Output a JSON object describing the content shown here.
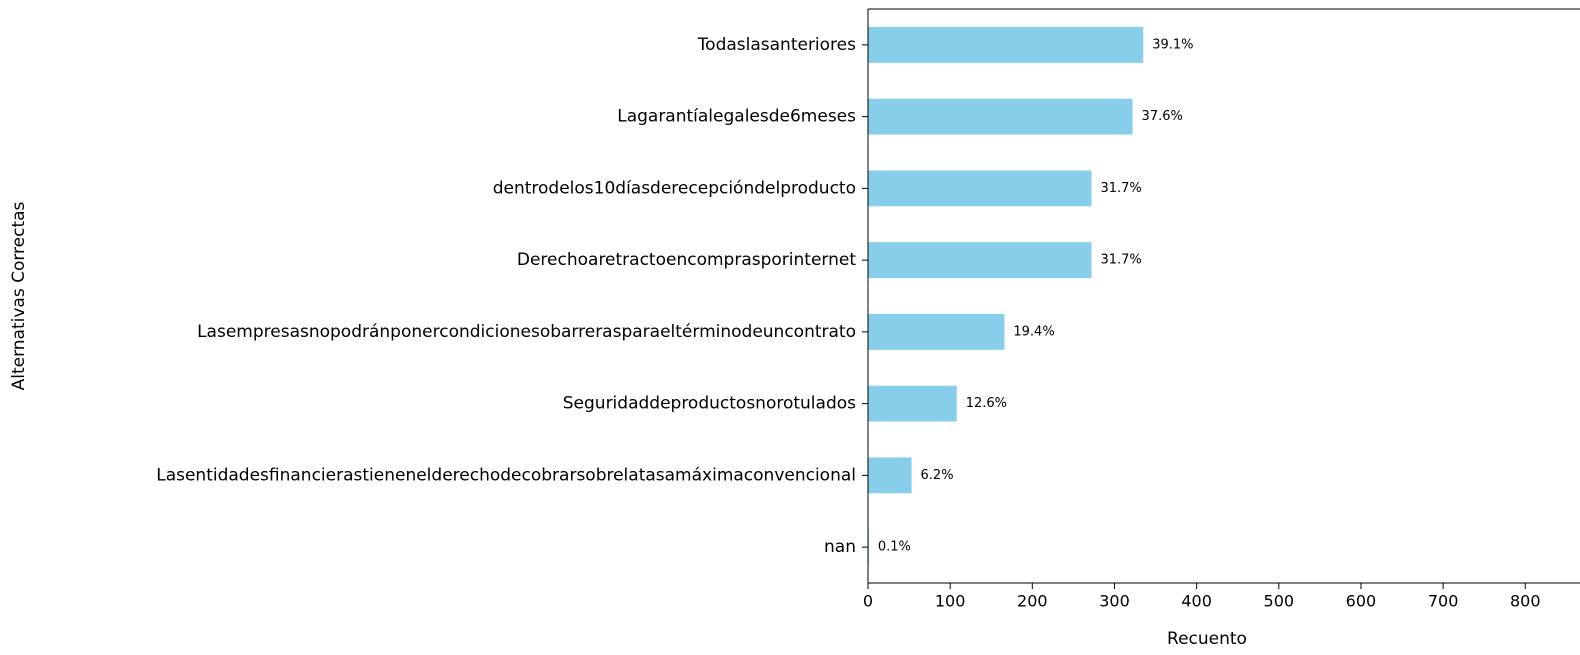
{
  "chart_data": {
    "type": "barh",
    "xlabel": "Recuento",
    "ylabel": "Alternativas Correctas",
    "categories": [
      "Todaslasanteriores",
      "Lagarantíalegalesde6meses",
      "dentrodelos10díasderecepcióndelproducto",
      "Derechoaretractoencomprasporinternet",
      "Lasempresasnopodránponercondicionesobarrerasparaeltérminodeuncontrato",
      "Seguridaddeproductosnorotulados",
      "Lasentidadesfinancierastienenelderechodecobrarsobrelatasamáximaconvencional",
      "nan"
    ],
    "values": [
      335,
      322,
      272,
      272,
      166,
      108,
      53,
      1
    ],
    "annotations": [
      "39.1%",
      "37.6%",
      "31.7%",
      "31.7%",
      "19.4%",
      "12.6%",
      "6.2%",
      "0.1%"
    ],
    "color": "#87ceeb",
    "xlim": [
      0,
      852
    ],
    "xticks": [
      0,
      100,
      200,
      300,
      400,
      500,
      600,
      700,
      800
    ]
  }
}
